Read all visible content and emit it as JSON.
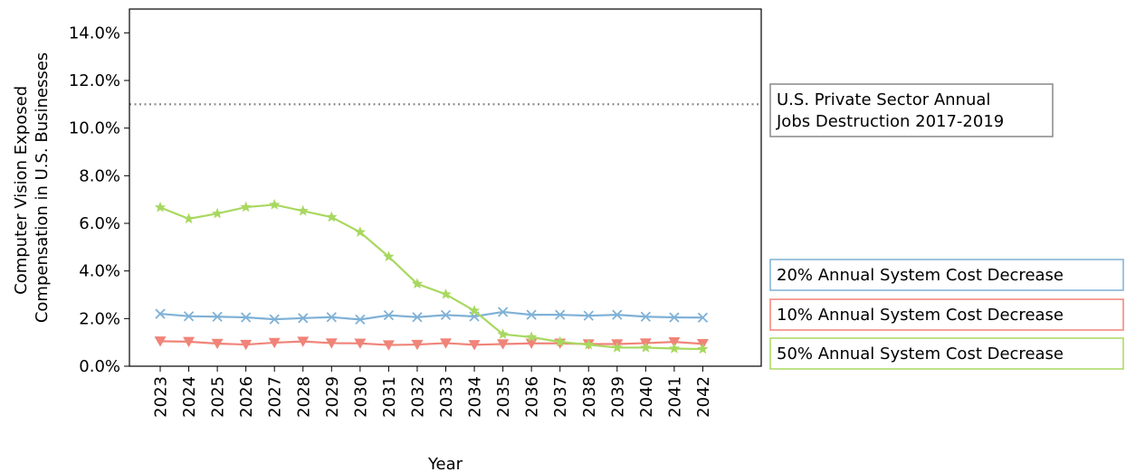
{
  "chart_data": {
    "type": "line",
    "title": "",
    "xlabel": "Year",
    "ylabel_lines": [
      "Computer Vision Exposed",
      "Compensation in U.S. Businesses"
    ],
    "ylim": [
      0,
      0.15
    ],
    "yticks": [
      {
        "value": 0.0,
        "label": "0.0%"
      },
      {
        "value": 0.02,
        "label": "2.0%"
      },
      {
        "value": 0.04,
        "label": "4.0%"
      },
      {
        "value": 0.06,
        "label": "6.0%"
      },
      {
        "value": 0.08,
        "label": "8.0%"
      },
      {
        "value": 0.1,
        "label": "10.0%"
      },
      {
        "value": 0.12,
        "label": "12.0%"
      },
      {
        "value": 0.14,
        "label": "14.0%"
      }
    ],
    "categories": [
      "2023",
      "2024",
      "2025",
      "2026",
      "2027",
      "2028",
      "2029",
      "2030",
      "2031",
      "2032",
      "2033",
      "2034",
      "2035",
      "2036",
      "2037",
      "2038",
      "2039",
      "2040",
      "2041",
      "2042"
    ],
    "reference_line": {
      "value": 0.11,
      "label_lines": [
        "U.S. Private Sector Annual",
        "Jobs Destruction 2017-2019"
      ],
      "color": "#888888"
    },
    "series": [
      {
        "name": "20% Annual System Cost Decrease",
        "color": "#7fb1d6",
        "marker": "x",
        "values": [
          0.022,
          0.021,
          0.0208,
          0.0205,
          0.0197,
          0.0202,
          0.0206,
          0.0196,
          0.0214,
          0.0206,
          0.0215,
          0.0209,
          0.0228,
          0.0216,
          0.0216,
          0.0212,
          0.0216,
          0.0208,
          0.0205,
          0.0204
        ]
      },
      {
        "name": "10% Annual System Cost Decrease",
        "color": "#f08479",
        "marker": "triangle-down",
        "values": [
          0.0105,
          0.0103,
          0.0095,
          0.0091,
          0.0099,
          0.0104,
          0.0097,
          0.0096,
          0.0089,
          0.0091,
          0.0097,
          0.009,
          0.0093,
          0.0096,
          0.0096,
          0.0093,
          0.0093,
          0.0097,
          0.0102,
          0.0094
        ]
      },
      {
        "name": "50% Annual System Cost Decrease",
        "color": "#a8d860",
        "marker": "star",
        "values": [
          0.0667,
          0.0619,
          0.0641,
          0.0668,
          0.0678,
          0.0652,
          0.0626,
          0.0563,
          0.046,
          0.0346,
          0.0302,
          0.0233,
          0.0134,
          0.0122,
          0.0102,
          0.009,
          0.0078,
          0.0078,
          0.0074,
          0.0072
        ]
      }
    ],
    "legend_order": [
      0,
      1,
      2
    ],
    "legend_placement": "right"
  }
}
